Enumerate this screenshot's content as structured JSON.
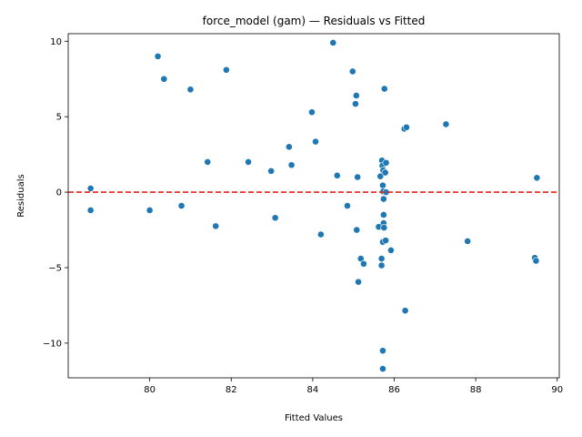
{
  "chart_data": {
    "type": "scatter",
    "title": "force_model (gam) — Residuals vs Fitted",
    "xlabel": "Fitted Values",
    "ylabel": "Residuals",
    "xlim": [
      78.0,
      90.05
    ],
    "ylim": [
      -12.3,
      10.5
    ],
    "x_ticks": [
      80,
      82,
      84,
      86,
      88,
      90
    ],
    "y_ticks": [
      -10,
      -5,
      0,
      5,
      10
    ],
    "x_tick_labels": [
      "80",
      "82",
      "84",
      "86",
      "88",
      "90"
    ],
    "y_tick_labels": [
      "−10",
      "−5",
      "0",
      "5",
      "10"
    ],
    "reference_line": {
      "y": 0,
      "style": "dashed",
      "color": "#e8221a"
    },
    "grid": false,
    "point_color": "#1f77b4",
    "points": [
      {
        "x": 78.55,
        "y": 0.25
      },
      {
        "x": 78.55,
        "y": -1.2
      },
      {
        "x": 80.0,
        "y": -1.2
      },
      {
        "x": 80.2,
        "y": 9.0
      },
      {
        "x": 80.35,
        "y": 7.5
      },
      {
        "x": 80.78,
        "y": -0.9
      },
      {
        "x": 81.0,
        "y": 6.8
      },
      {
        "x": 81.42,
        "y": 2.0
      },
      {
        "x": 81.62,
        "y": -2.25
      },
      {
        "x": 81.88,
        "y": 8.1
      },
      {
        "x": 82.42,
        "y": 2.0
      },
      {
        "x": 82.98,
        "y": 1.4
      },
      {
        "x": 83.08,
        "y": -1.7
      },
      {
        "x": 83.42,
        "y": 3.0
      },
      {
        "x": 83.48,
        "y": 1.8
      },
      {
        "x": 83.98,
        "y": 5.3
      },
      {
        "x": 84.07,
        "y": 3.35
      },
      {
        "x": 84.2,
        "y": -2.8
      },
      {
        "x": 84.5,
        "y": 9.9
      },
      {
        "x": 84.6,
        "y": 1.1
      },
      {
        "x": 84.85,
        "y": -0.9
      },
      {
        "x": 84.98,
        "y": 8.0
      },
      {
        "x": 85.05,
        "y": 5.85
      },
      {
        "x": 85.07,
        "y": 6.4
      },
      {
        "x": 85.08,
        "y": -2.5
      },
      {
        "x": 85.1,
        "y": 1.0
      },
      {
        "x": 85.12,
        "y": -5.95
      },
      {
        "x": 85.18,
        "y": -4.4
      },
      {
        "x": 85.25,
        "y": -4.75
      },
      {
        "x": 85.62,
        "y": -2.3
      },
      {
        "x": 85.66,
        "y": 1.05
      },
      {
        "x": 85.69,
        "y": -4.4
      },
      {
        "x": 85.69,
        "y": -4.85
      },
      {
        "x": 85.7,
        "y": 2.1
      },
      {
        "x": 85.71,
        "y": 1.75
      },
      {
        "x": 85.72,
        "y": 0.45
      },
      {
        "x": 85.72,
        "y": -3.3
      },
      {
        "x": 85.72,
        "y": -10.5
      },
      {
        "x": 85.72,
        "y": -11.7
      },
      {
        "x": 85.73,
        "y": 1.45
      },
      {
        "x": 85.73,
        "y": 0.05
      },
      {
        "x": 85.74,
        "y": -0.45
      },
      {
        "x": 85.74,
        "y": -1.5
      },
      {
        "x": 85.74,
        "y": -2.05
      },
      {
        "x": 85.75,
        "y": -2.35
      },
      {
        "x": 85.76,
        "y": 6.85
      },
      {
        "x": 85.78,
        "y": 1.3
      },
      {
        "x": 85.79,
        "y": -3.2
      },
      {
        "x": 85.8,
        "y": 1.95
      },
      {
        "x": 85.8,
        "y": 0.0
      },
      {
        "x": 85.92,
        "y": -3.85
      },
      {
        "x": 86.25,
        "y": 4.2
      },
      {
        "x": 86.27,
        "y": -7.85
      },
      {
        "x": 86.3,
        "y": 4.3
      },
      {
        "x": 87.27,
        "y": 4.5
      },
      {
        "x": 87.8,
        "y": -3.25
      },
      {
        "x": 89.45,
        "y": -4.35
      },
      {
        "x": 89.48,
        "y": -4.55
      },
      {
        "x": 89.5,
        "y": 0.95
      }
    ]
  }
}
